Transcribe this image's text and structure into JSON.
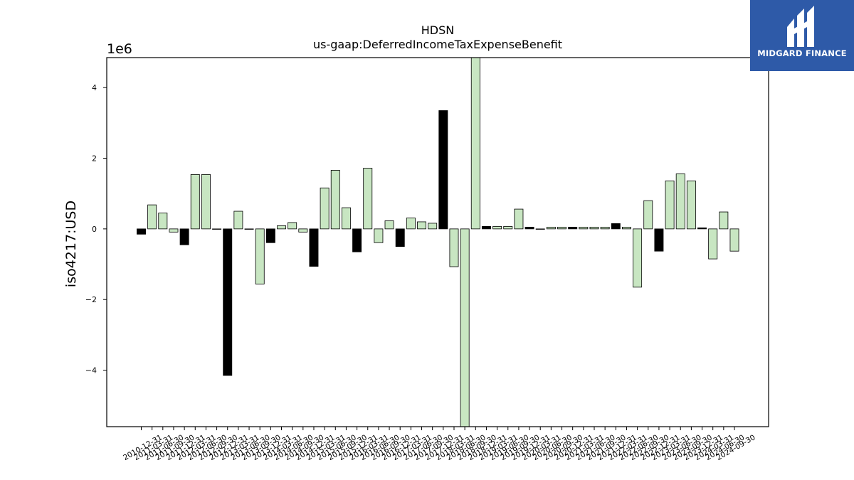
{
  "brand": {
    "name": "MIDGARD FINANCE",
    "icon": "midgard-logo-icon",
    "background": "#2e5aa8"
  },
  "chart_data": {
    "type": "bar",
    "title": "HDSN",
    "subtitle": "us-gaap:DeferredIncomeTaxExpenseBenefit",
    "ylabel": "iso4217:USD",
    "xlabel": "",
    "y_multiplier_label": "1e6",
    "y_multiplier": 1000000,
    "ylim": [
      -5600000,
      4850000
    ],
    "yticks": [
      -4,
      -2,
      0,
      2,
      4
    ],
    "grid": false,
    "legend": "none",
    "colors": {
      "annual": "#000000",
      "quarterly": "#c8e6c2",
      "edge": "#000000"
    },
    "x_tick_labels": [
      "2010-12-31",
      "2011-03-31",
      "2011-06-30",
      "2011-09-30",
      "2011-12-31",
      "2012-03-31",
      "2012-06-30",
      "2012-09-30",
      "2012-12-31",
      "2013-03-31",
      "2013-06-30",
      "2013-09-30",
      "2013-12-31",
      "2014-03-31",
      "2014-06-30",
      "2014-09-30",
      "2014-12-31",
      "2015-03-31",
      "2015-06-30",
      "2015-09-30",
      "2015-12-31",
      "2016-03-31",
      "2016-06-30",
      "2016-09-30",
      "2016-12-31",
      "2017-03-31",
      "2017-06-30",
      "2017-09-30",
      "2017-12-31",
      "2018-03-31",
      "2018-06-30",
      "2018-09-30",
      "2018-12-31",
      "2019-03-31",
      "2019-06-30",
      "2019-09-30",
      "2019-12-31",
      "2020-03-31",
      "2020-06-30",
      "2020-09-30",
      "2020-12-31",
      "2021-03-31",
      "2021-06-30",
      "2021-09-30",
      "2021-12-31",
      "2022-03-31",
      "2022-06-30",
      "2022-09-30",
      "2022-12-31",
      "2023-03-31",
      "2023-06-30",
      "2023-09-30",
      "2023-12-31",
      "2024-03-31",
      "2024-06-30",
      "2024-09-30"
    ],
    "bars": [
      {
        "value": -150000,
        "kind": "annual"
      },
      {
        "value": 680000,
        "kind": "quarterly"
      },
      {
        "value": 450000,
        "kind": "quarterly"
      },
      {
        "value": -90000,
        "kind": "quarterly"
      },
      {
        "value": -450000,
        "kind": "annual"
      },
      {
        "value": 1540000,
        "kind": "quarterly"
      },
      {
        "value": 1540000,
        "kind": "quarterly"
      },
      {
        "value": 0,
        "kind": "quarterly"
      },
      {
        "value": -4150000,
        "kind": "annual"
      },
      {
        "value": 500000,
        "kind": "quarterly"
      },
      {
        "value": 0,
        "kind": "quarterly"
      },
      {
        "value": -1560000,
        "kind": "quarterly"
      },
      {
        "value": -390000,
        "kind": "annual"
      },
      {
        "value": 90000,
        "kind": "quarterly"
      },
      {
        "value": 180000,
        "kind": "quarterly"
      },
      {
        "value": -90000,
        "kind": "quarterly"
      },
      {
        "value": -1060000,
        "kind": "annual"
      },
      {
        "value": 1160000,
        "kind": "quarterly"
      },
      {
        "value": 1660000,
        "kind": "quarterly"
      },
      {
        "value": 600000,
        "kind": "quarterly"
      },
      {
        "value": -650000,
        "kind": "annual"
      },
      {
        "value": 1720000,
        "kind": "quarterly"
      },
      {
        "value": -390000,
        "kind": "quarterly"
      },
      {
        "value": 230000,
        "kind": "quarterly"
      },
      {
        "value": -500000,
        "kind": "annual"
      },
      {
        "value": 310000,
        "kind": "quarterly"
      },
      {
        "value": 200000,
        "kind": "quarterly"
      },
      {
        "value": 160000,
        "kind": "quarterly"
      },
      {
        "value": 3350000,
        "kind": "annual"
      },
      {
        "value": -1070000,
        "kind": "quarterly"
      },
      {
        "value": -5600000,
        "kind": "quarterly"
      },
      {
        "value": 4850000,
        "kind": "quarterly"
      },
      {
        "value": 70000,
        "kind": "annual"
      },
      {
        "value": 70000,
        "kind": "quarterly"
      },
      {
        "value": 70000,
        "kind": "quarterly"
      },
      {
        "value": 560000,
        "kind": "quarterly"
      },
      {
        "value": 50000,
        "kind": "annual"
      },
      {
        "value": 0,
        "kind": "quarterly"
      },
      {
        "value": 50000,
        "kind": "quarterly"
      },
      {
        "value": 50000,
        "kind": "quarterly"
      },
      {
        "value": 50000,
        "kind": "annual"
      },
      {
        "value": 50000,
        "kind": "quarterly"
      },
      {
        "value": 50000,
        "kind": "quarterly"
      },
      {
        "value": 50000,
        "kind": "quarterly"
      },
      {
        "value": 150000,
        "kind": "annual"
      },
      {
        "value": 50000,
        "kind": "quarterly"
      },
      {
        "value": -1650000,
        "kind": "quarterly"
      },
      {
        "value": 800000,
        "kind": "quarterly"
      },
      {
        "value": -630000,
        "kind": "annual"
      },
      {
        "value": 1360000,
        "kind": "quarterly"
      },
      {
        "value": 1560000,
        "kind": "quarterly"
      },
      {
        "value": 1360000,
        "kind": "quarterly"
      },
      {
        "value": 30000,
        "kind": "annual"
      },
      {
        "value": -850000,
        "kind": "quarterly"
      },
      {
        "value": 480000,
        "kind": "quarterly"
      },
      {
        "value": -630000,
        "kind": "quarterly"
      }
    ]
  }
}
